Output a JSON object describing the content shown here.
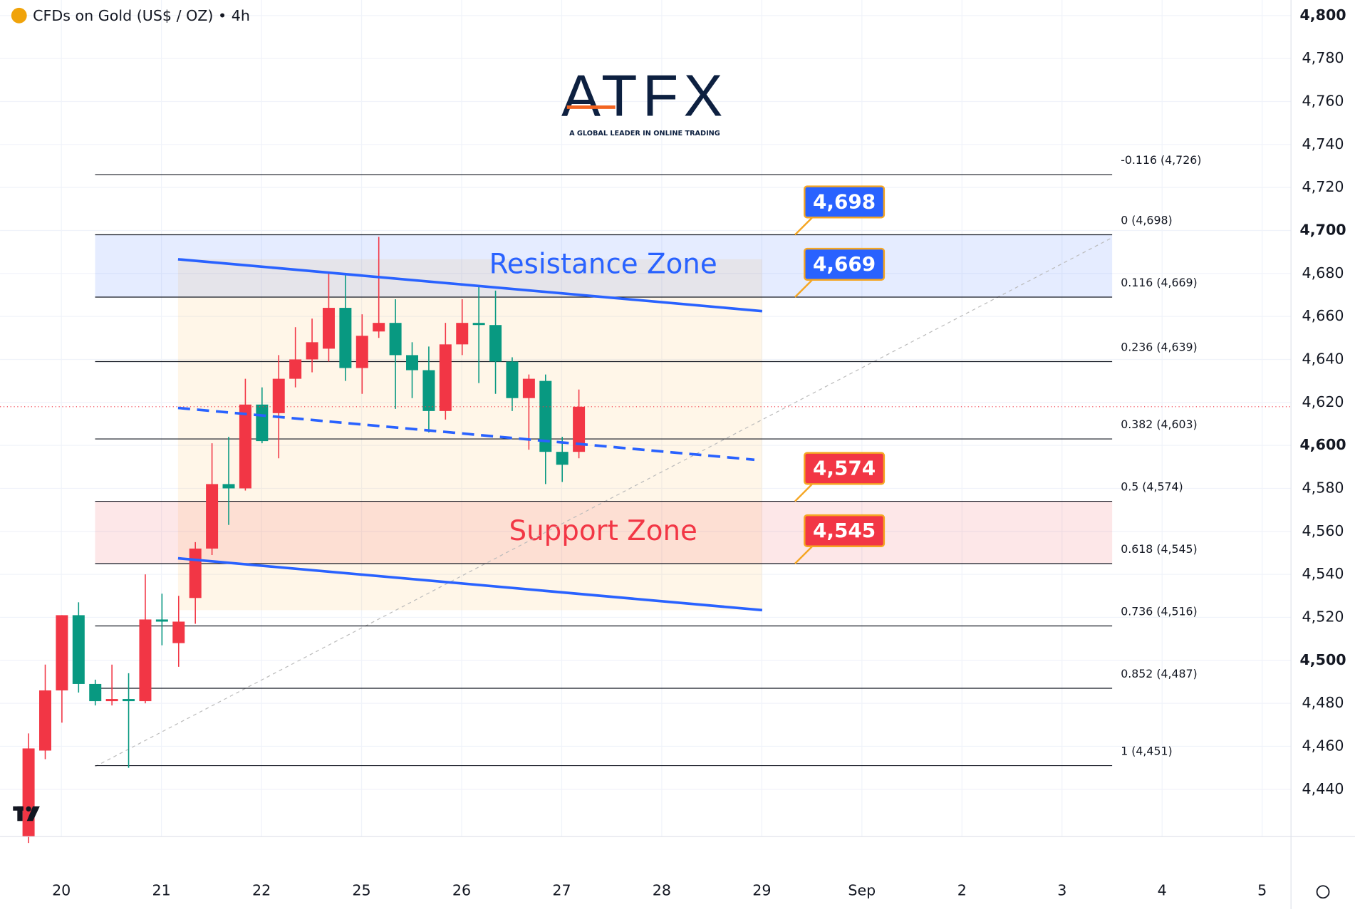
{
  "header": {
    "title": "CFDs on Gold (US$ / OZ) • 4h"
  },
  "logo": {
    "name": "ATFX",
    "tagline": "A GLOBAL LEADER IN ONLINE TRADING"
  },
  "chart_data": {
    "type": "candlestick",
    "categories": [
      "20",
      "21",
      "22",
      "25",
      "26",
      "27",
      "28",
      "29",
      "Sep",
      "2",
      "3",
      "4",
      "5"
    ],
    "series": [
      {
        "up_color": "#f23645",
        "down_color": "#089981",
        "open": [
          4418,
          4458,
          4486,
          4521,
          4489,
          4481,
          4482,
          4481,
          4519,
          4508,
          4529,
          4552,
          4582,
          4580,
          4619,
          4615,
          4631,
          4640,
          4645,
          4664,
          4636,
          4653,
          4657,
          4642,
          4635,
          4616,
          4647,
          4657,
          4656,
          4639,
          4622,
          4630,
          4597,
          4597
        ],
        "high": [
          4466,
          4498,
          4521,
          4527,
          4491,
          4498,
          4494,
          4540,
          4531,
          4530,
          4555,
          4601,
          4604,
          4631,
          4627,
          4642,
          4655,
          4659,
          4680,
          4680,
          4661,
          4697,
          4668,
          4648,
          4646,
          4657,
          4668,
          4674,
          4672,
          4641,
          4633,
          4633,
          4604,
          4626
        ],
        "low": [
          4415,
          4454,
          4471,
          4485,
          4479,
          4479,
          4450,
          4480,
          4507,
          4497,
          4517,
          4549,
          4563,
          4579,
          4601,
          4594,
          4627,
          4634,
          4639,
          4630,
          4624,
          4650,
          4617,
          4622,
          4606,
          4612,
          4642,
          4629,
          4624,
          4616,
          4598,
          4582,
          4583,
          4594
        ],
        "close": [
          4459,
          4486,
          4521,
          4489,
          4481,
          4482,
          4481,
          4519,
          4518,
          4518,
          4552,
          4582,
          4580,
          4619,
          4602,
          4631,
          4640,
          4648,
          4664,
          4636,
          4651,
          4657,
          4642,
          4635,
          4616,
          4647,
          4657,
          4656,
          4639,
          4622,
          4631,
          4597,
          4591,
          4618
        ]
      }
    ],
    "ylim": [
      4418,
      4800
    ],
    "yticks": [
      {
        "value": 4440,
        "label": "4,440"
      },
      {
        "value": 4460,
        "label": "4,460"
      },
      {
        "value": 4480,
        "label": "4,480"
      },
      {
        "value": 4500,
        "label": "4,500"
      },
      {
        "value": 4520,
        "label": "4,520"
      },
      {
        "value": 4540,
        "label": "4,540"
      },
      {
        "value": 4560,
        "label": "4,560"
      },
      {
        "value": 4580,
        "label": "4,580"
      },
      {
        "value": 4600,
        "label": "4,600"
      },
      {
        "value": 4620,
        "label": "4,620"
      },
      {
        "value": 4640,
        "label": "4,640"
      },
      {
        "value": 4660,
        "label": "4,660"
      },
      {
        "value": 4680,
        "label": "4,680"
      },
      {
        "value": 4700,
        "label": "4,700"
      },
      {
        "value": 4720,
        "label": "4,720"
      },
      {
        "value": 4740,
        "label": "4,740"
      },
      {
        "value": 4760,
        "label": "4,760"
      },
      {
        "value": 4780,
        "label": "4,780"
      },
      {
        "value": 4800,
        "label": "4,800"
      }
    ],
    "grid": true,
    "fib_levels": [
      {
        "value": 4726,
        "label": "-0.116 (4,726)"
      },
      {
        "value": 4698,
        "label": "0 (4,698)"
      },
      {
        "value": 4669,
        "label": "0.116 (4,669)"
      },
      {
        "value": 4639,
        "label": "0.236 (4,639)"
      },
      {
        "value": 4603,
        "label": "0.382 (4,603)"
      },
      {
        "value": 4574,
        "label": "0.5 (4,574)"
      },
      {
        "value": 4545,
        "label": "0.618 (4,545)"
      },
      {
        "value": 4516,
        "label": "0.736 (4,516)"
      },
      {
        "value": 4487,
        "label": "0.852 (4,487)"
      },
      {
        "value": 4451,
        "label": "1 (4,451)"
      }
    ],
    "zones": [
      {
        "label": "Resistance Zone",
        "from": 4669,
        "to": 4698,
        "color": "#2962ff"
      },
      {
        "label": "Support Zone",
        "from": 4545,
        "to": 4574,
        "color": "#f23645"
      }
    ],
    "callouts": {
      "values": [
        4698,
        4669,
        4574,
        4545
      ],
      "value_labels": [
        "4,698",
        "4,669",
        "4,574",
        "4,545"
      ],
      "colors": [
        "#2962ff",
        "#2962ff",
        "#f23645",
        "#f23645"
      ]
    }
  }
}
